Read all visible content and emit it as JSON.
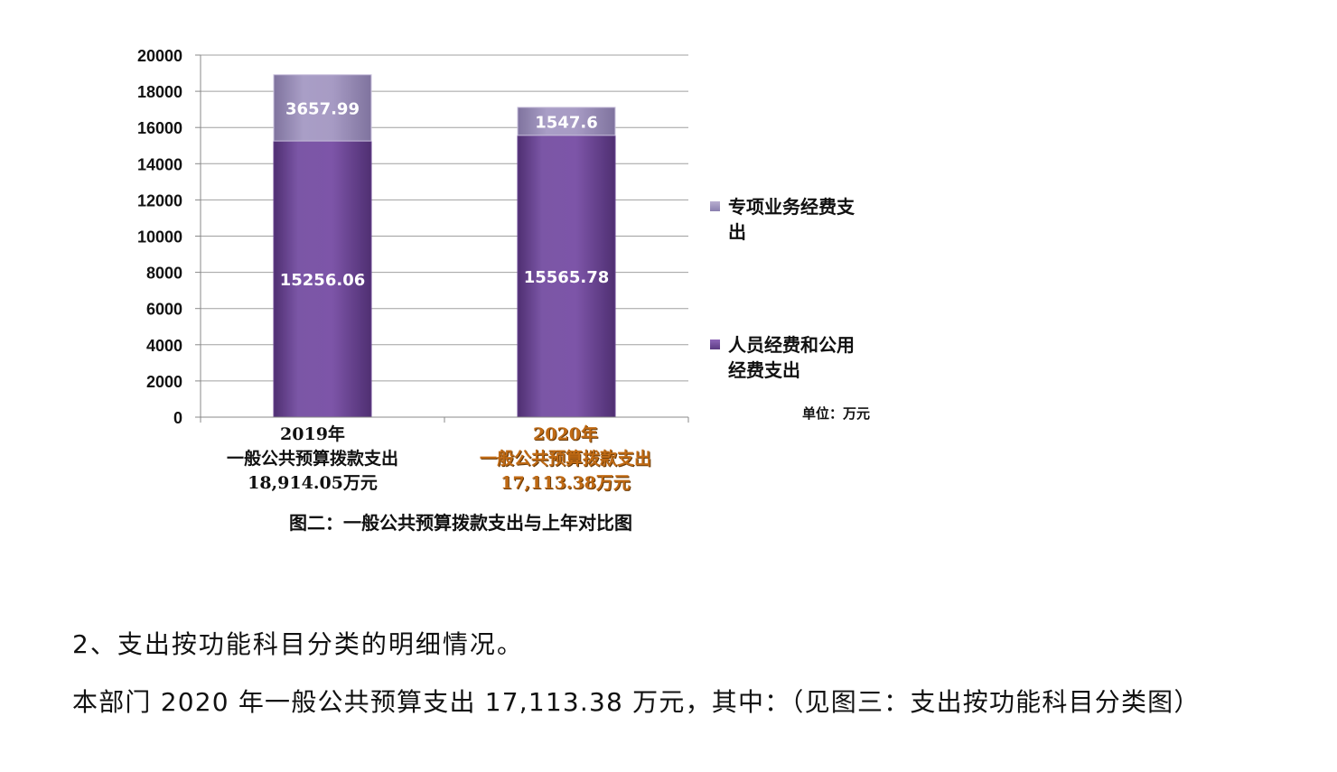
{
  "chart_data": {
    "type": "bar",
    "stacked": true,
    "categories": [
      "2019年",
      "2020年"
    ],
    "series": [
      {
        "name": "人员经费和公用经费支出",
        "values": [
          15256.06,
          15565.78
        ],
        "color": "#7b4fa3"
      },
      {
        "name": "专项业务经费支出",
        "values": [
          3657.99,
          1547.6
        ],
        "color": "#9a8db8"
      }
    ],
    "ylim": [
      0,
      20000
    ],
    "yticks": [
      0,
      2000,
      4000,
      6000,
      8000,
      10000,
      12000,
      14000,
      16000,
      18000,
      20000
    ],
    "grid": true,
    "legend_position": "right"
  },
  "legend": {
    "items": [
      {
        "label": "专项业务经费支出",
        "color": "#9a8db8"
      },
      {
        "label": "人员经费和公用经费支出",
        "color": "#7b4fa3"
      }
    ]
  },
  "unit_label": "单位：万元",
  "categories_full": [
    {
      "year": "2019年",
      "line2": "一般公共预算拨款支出",
      "line3": "18,914.05万元"
    },
    {
      "year": "2020年",
      "line2": "一般公共预算拨款支出",
      "line3": "17,113.38万元"
    }
  ],
  "caption": "图二：一般公共预算拨款支出与上年对比图",
  "paragraphs": {
    "p1": "2、支出按功能科目分类的明细情况。",
    "p2": "本部门 2020 年一般公共预算支出 17,113.38 万元，其中：（见图三：支出按功能科目分类图）"
  }
}
